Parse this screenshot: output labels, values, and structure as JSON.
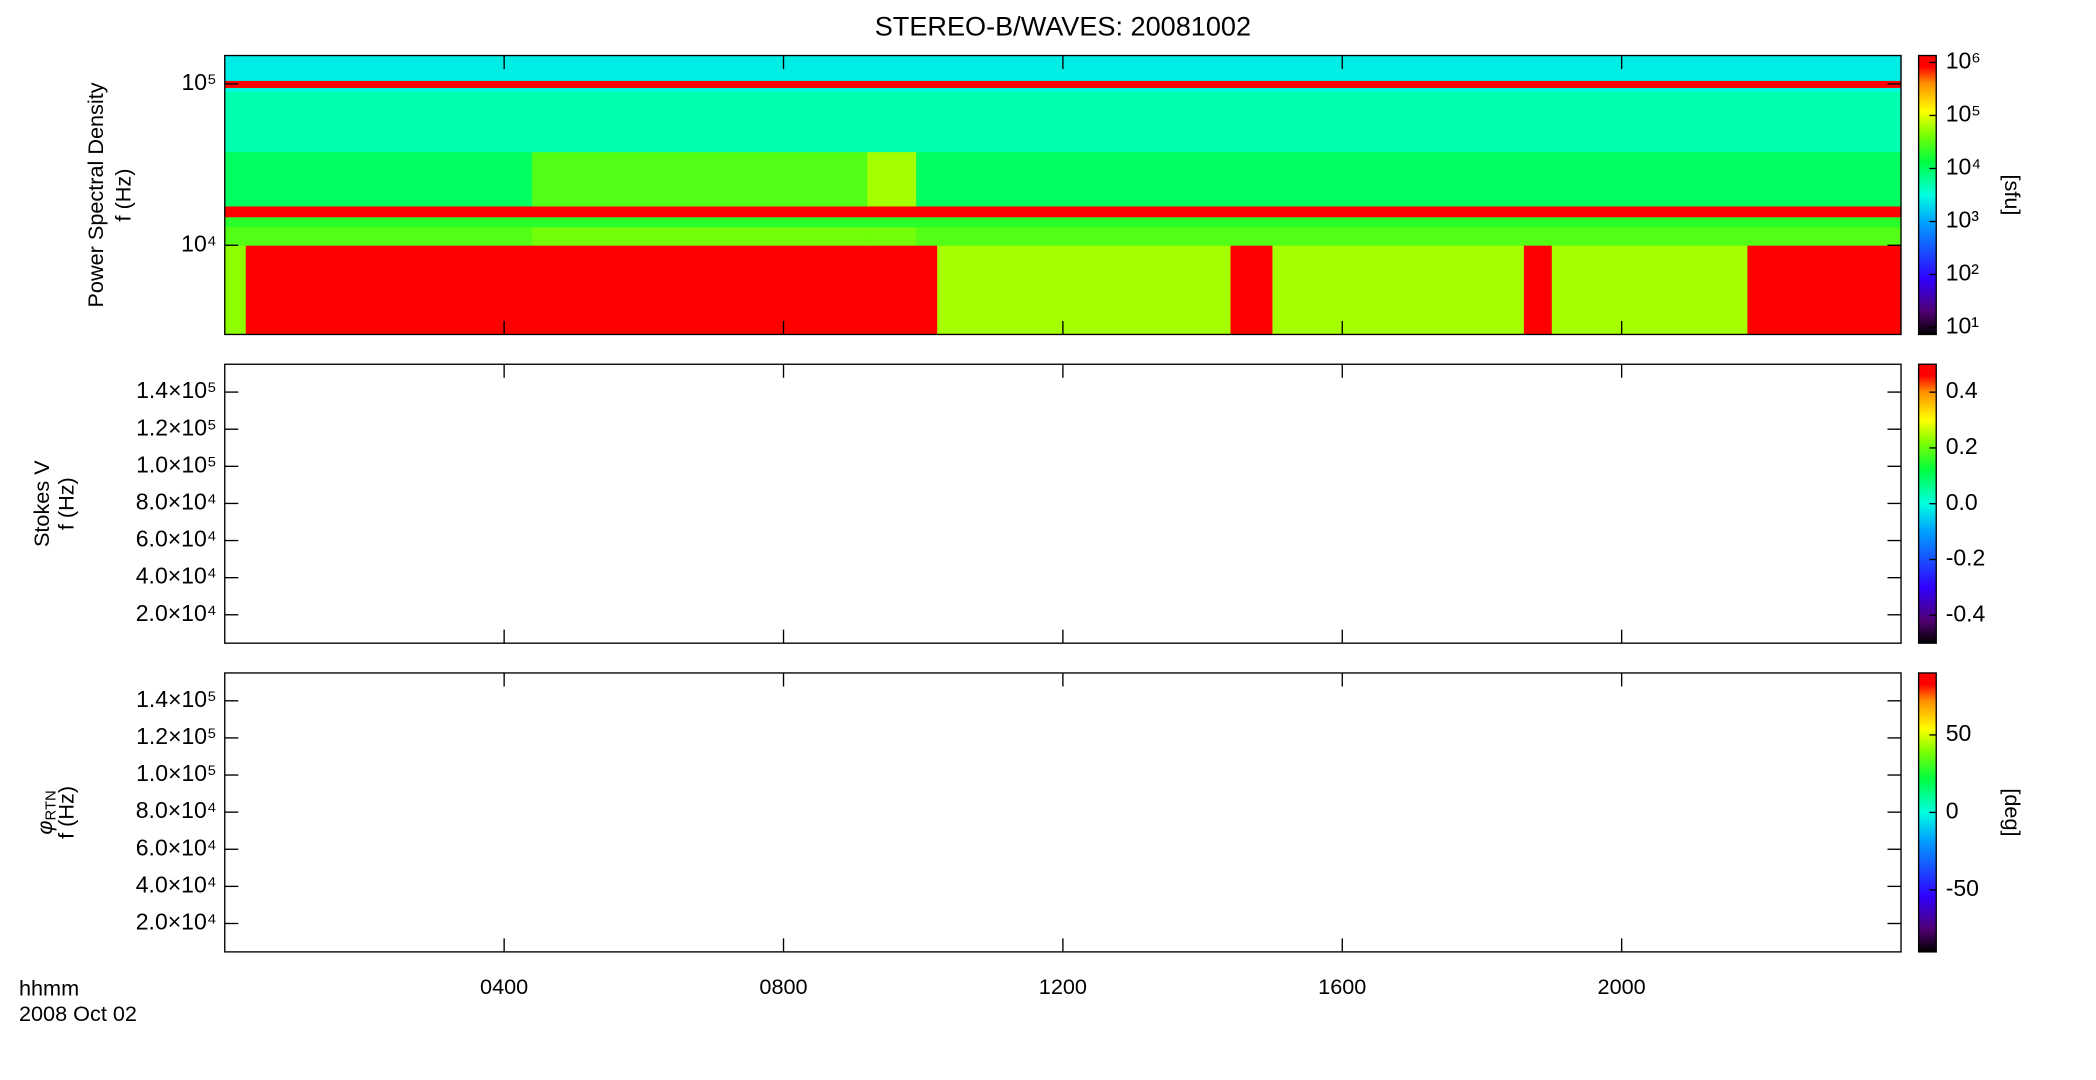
{
  "chart_data": [
    {
      "type": "heatmap",
      "title": "STEREO-B/WAVES: 20081002",
      "ylabel": [
        "Power Spectral Density",
        "f (Hz)"
      ],
      "clabel": "[sfu]",
      "xlim": [
        0,
        24
      ],
      "xticks": [
        4,
        8,
        12,
        16,
        20
      ],
      "ylim": [
        2800,
        150000
      ],
      "ylog": true,
      "yticks": [
        {
          "value": 10000,
          "label": "10⁴"
        },
        {
          "value": 100000,
          "label": "10⁵"
        }
      ],
      "clim": [
        7.4,
        1350000
      ],
      "clog": true,
      "cticks": [
        {
          "value": 10,
          "label": "10¹"
        },
        {
          "value": 100,
          "label": "10²"
        },
        {
          "value": 1000,
          "label": "10³"
        },
        {
          "value": 10000,
          "label": "10⁴"
        },
        {
          "value": 100000,
          "label": "10⁵"
        },
        {
          "value": 1000000,
          "label": "10⁶"
        }
      ],
      "colormap": [
        {
          "at": 0,
          "color": "#000000"
        },
        {
          "at": 0.08,
          "color": "#500070"
        },
        {
          "at": 0.2,
          "color": "#3000ff"
        },
        {
          "at": 0.4,
          "color": "#00a0ff"
        },
        {
          "at": 0.5,
          "color": "#00ffe0"
        },
        {
          "at": 0.62,
          "color": "#00ff40"
        },
        {
          "at": 0.72,
          "color": "#80ff00"
        },
        {
          "at": 0.8,
          "color": "#ffff00"
        },
        {
          "at": 0.9,
          "color": "#ff9000"
        },
        {
          "at": 0.96,
          "color": "#ff0000"
        },
        {
          "at": 1,
          "color": "#ff0000"
        }
      ],
      "xbins": [
        0,
        0.3,
        3.0,
        4.4,
        9.2,
        9.9,
        10.2,
        14.4,
        15.0,
        18.6,
        19.0,
        21.8,
        24
      ],
      "ybins": [
        2800,
        10000,
        13000,
        15000,
        17500,
        38000,
        90000,
        95000,
        105000,
        150000
      ],
      "z": [
        [
          50000,
          1000000,
          1000000,
          1000000,
          1000000,
          1000000,
          60000,
          1000000,
          60000,
          1000000,
          60000,
          1000000
        ],
        [
          30000,
          30000,
          30000,
          40000,
          40000,
          30000,
          30000,
          30000,
          30000,
          30000,
          30000,
          30000
        ],
        [
          20000,
          20000,
          20000,
          20000,
          20000,
          20000,
          20000,
          20000,
          20000,
          20000,
          20000,
          20000
        ],
        [
          1000000,
          1000000,
          1000000,
          1000000,
          1000000,
          1000000,
          1000000,
          1000000,
          1000000,
          1000000,
          1000000,
          1000000
        ],
        [
          10000,
          10000,
          10000,
          30000,
          60000,
          10000,
          10000,
          10000,
          10000,
          10000,
          10000,
          10000
        ],
        [
          5000,
          5000,
          5000,
          5000,
          5000,
          5000,
          5000,
          5000,
          5000,
          5000,
          5000,
          5000
        ],
        [
          3000,
          3000,
          3000,
          3000,
          3000,
          3000,
          3000,
          3000,
          3000,
          3000,
          3000,
          3000
        ],
        [
          1000000,
          1000000,
          1000000,
          1000000,
          1000000,
          1000000,
          1000000,
          1000000,
          1000000,
          1000000,
          1000000,
          1000000
        ],
        [
          2500,
          2500,
          2500,
          2500,
          2500,
          2500,
          2500,
          2500,
          2500,
          2500,
          2500,
          2500
        ]
      ]
    },
    {
      "type": "heatmap",
      "ylabel": [
        "Stokes V",
        "f (Hz)"
      ],
      "xlim": [
        0,
        24
      ],
      "xticks": [
        4,
        8,
        12,
        16,
        20
      ],
      "ylim": [
        4700,
        155000
      ],
      "ylog": false,
      "yticks": [
        {
          "value": 20000,
          "label": "2.0×10⁴"
        },
        {
          "value": 40000,
          "label": "4.0×10⁴"
        },
        {
          "value": 60000,
          "label": "6.0×10⁴"
        },
        {
          "value": 80000,
          "label": "8.0×10⁴"
        },
        {
          "value": 100000,
          "label": "1.0×10⁵"
        },
        {
          "value": 120000,
          "label": "1.2×10⁵"
        },
        {
          "value": 140000,
          "label": "1.4×10⁵"
        }
      ],
      "clim": [
        -0.5,
        0.5
      ],
      "clog": false,
      "cticks": [
        -0.4,
        -0.2,
        {
          "value": 0,
          "label": "0.0"
        },
        0.2,
        0.4
      ],
      "colormap": [
        {
          "at": 0,
          "color": "#000000"
        },
        {
          "at": 0.08,
          "color": "#500070"
        },
        {
          "at": 0.2,
          "color": "#3000ff"
        },
        {
          "at": 0.4,
          "color": "#00a0ff"
        },
        {
          "at": 0.5,
          "color": "#00ffe0"
        },
        {
          "at": 0.62,
          "color": "#00ff40"
        },
        {
          "at": 0.72,
          "color": "#80ff00"
        },
        {
          "at": 0.8,
          "color": "#ffff00"
        },
        {
          "at": 0.9,
          "color": "#ff9000"
        },
        {
          "at": 0.96,
          "color": "#ff0000"
        },
        {
          "at": 1,
          "color": "#ff0000"
        }
      ],
      "xbins": [],
      "ybins": [],
      "z": []
    },
    {
      "type": "heatmap",
      "ylabel_symbol": "φ",
      "ylabel_subscript": "RTN",
      "ylabel": [
        "f (Hz)"
      ],
      "clabel": "[deg]",
      "xlim": [
        0,
        24
      ],
      "xticks": [
        {
          "value": 4,
          "label": "0400"
        },
        {
          "value": 8,
          "label": "0800"
        },
        {
          "value": 12,
          "label": "1200"
        },
        {
          "value": 16,
          "label": "1600"
        },
        {
          "value": 20,
          "label": "2000"
        }
      ],
      "xlabel": "hhmm",
      "date_label": "2008 Oct 02",
      "ylim": [
        4700,
        155000
      ],
      "ylog": false,
      "yticks": [
        {
          "value": 20000,
          "label": "2.0×10⁴"
        },
        {
          "value": 40000,
          "label": "4.0×10⁴"
        },
        {
          "value": 60000,
          "label": "6.0×10⁴"
        },
        {
          "value": 80000,
          "label": "8.0×10⁴"
        },
        {
          "value": 100000,
          "label": "1.0×10⁵"
        },
        {
          "value": 120000,
          "label": "1.2×10⁵"
        },
        {
          "value": 140000,
          "label": "1.4×10⁵"
        }
      ],
      "clim": [
        -90,
        90
      ],
      "clog": false,
      "cticks": [
        -50,
        0,
        50
      ],
      "colormap": [
        {
          "at": 0,
          "color": "#000000"
        },
        {
          "at": 0.08,
          "color": "#500070"
        },
        {
          "at": 0.2,
          "color": "#3000ff"
        },
        {
          "at": 0.4,
          "color": "#00a0ff"
        },
        {
          "at": 0.5,
          "color": "#00ffe0"
        },
        {
          "at": 0.62,
          "color": "#00ff40"
        },
        {
          "at": 0.72,
          "color": "#80ff00"
        },
        {
          "at": 0.8,
          "color": "#ffff00"
        },
        {
          "at": 0.9,
          "color": "#ff9000"
        },
        {
          "at": 0.96,
          "color": "#ff0000"
        },
        {
          "at": 1,
          "color": "#ff0000"
        }
      ],
      "xbins": [],
      "ybins": [],
      "z": []
    }
  ]
}
